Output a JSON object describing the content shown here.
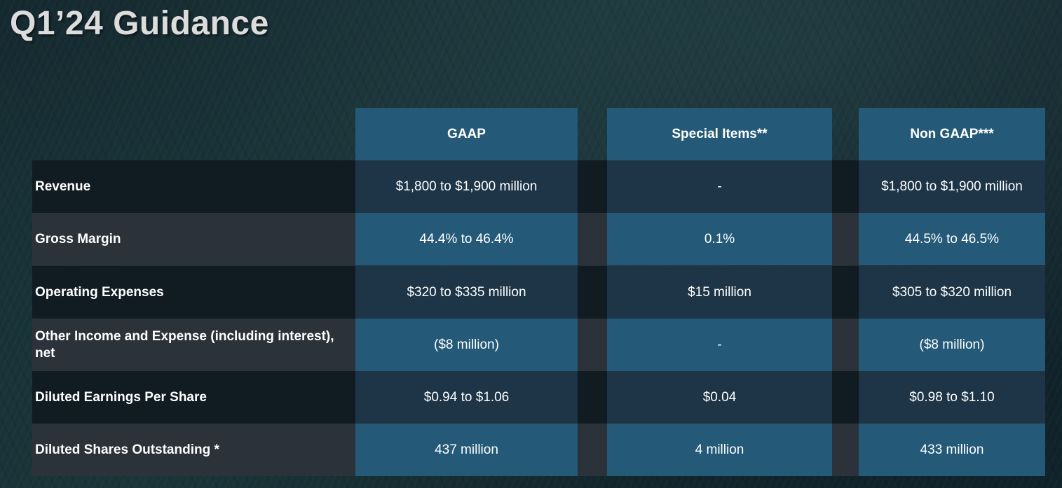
{
  "title": "Q1’24 Guidance",
  "columns": [
    "GAAP",
    "Special Items**",
    "Non GAAP***"
  ],
  "rows": [
    {
      "label": "Revenue",
      "values": [
        "$1,800 to $1,900 million",
        "-",
        "$1,800 to $1,900 million"
      ]
    },
    {
      "label": "Gross Margin",
      "values": [
        "44.4% to 46.4%",
        "0.1%",
        "44.5% to 46.5%"
      ]
    },
    {
      "label": "Operating Expenses",
      "values": [
        "$320 to $335 million",
        "$15 million",
        "$305 to $320 million"
      ]
    },
    {
      "label": "Other Income and Expense (including interest), net",
      "values": [
        "($8 million)",
        "-",
        "($8 million)"
      ]
    },
    {
      "label": "Diluted Earnings Per Share",
      "values": [
        "$0.94 to $1.06",
        "$0.04",
        "$0.98 to $1.10"
      ]
    },
    {
      "label": "Diluted Shares Outstanding *",
      "values": [
        "437 million",
        "4 million",
        "433 million"
      ]
    }
  ],
  "colors": {
    "header": "#245a78",
    "dark_row_label": "#111b22",
    "dark_row_value": "#1d3547",
    "light_row_label": "#2b323a",
    "light_row_value": "#245a78",
    "title": "#dcdcdc"
  }
}
